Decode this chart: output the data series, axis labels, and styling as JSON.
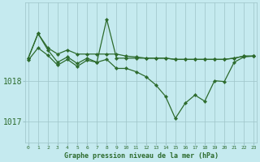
{
  "title": "Graphe pression niveau de la mer (hPa)",
  "background_color": "#c5eaef",
  "grid_color": "#9dc4c8",
  "line_color": "#2d6b2d",
  "marker_color": "#2d6b2d",
  "ylabel_ticks": [
    1017,
    1018
  ],
  "xlim": [
    -0.3,
    23.3
  ],
  "ylim": [
    1016.5,
    1019.9
  ],
  "xticks": [
    0,
    1,
    2,
    3,
    4,
    5,
    6,
    7,
    8,
    9,
    10,
    11,
    12,
    13,
    14,
    15,
    16,
    17,
    18,
    19,
    20,
    21,
    22,
    23
  ],
  "line1_y": [
    1018.55,
    1019.15,
    1018.8,
    1018.65,
    1018.75,
    1018.65,
    1018.65,
    1018.65,
    1018.65,
    1018.65,
    1018.6,
    1018.58,
    1018.55,
    1018.55,
    1018.55,
    1018.52,
    1018.52,
    1018.52,
    1018.52,
    1018.52,
    1018.52,
    1018.55,
    1018.6,
    1018.6
  ],
  "line2_y": [
    1018.55,
    1019.15,
    1018.75,
    1018.45,
    1018.58,
    1018.42,
    1018.55,
    1018.45,
    1019.5,
    1018.55,
    1018.55,
    1018.55,
    1018.55,
    1018.55,
    1018.55,
    1018.52,
    1018.52,
    1018.52,
    1018.52,
    1018.52,
    1018.52,
    1018.55,
    1018.6,
    1018.6
  ],
  "line3_y": [
    1018.5,
    1018.8,
    1018.62,
    1018.38,
    1018.52,
    1018.35,
    1018.5,
    1018.45,
    1018.52,
    1018.3,
    1018.3,
    1018.22,
    1018.1,
    1017.9,
    1017.62,
    1017.08,
    1017.45,
    1017.65,
    1017.5,
    1018.0,
    1017.98,
    1018.45,
    1018.58,
    1018.6
  ]
}
